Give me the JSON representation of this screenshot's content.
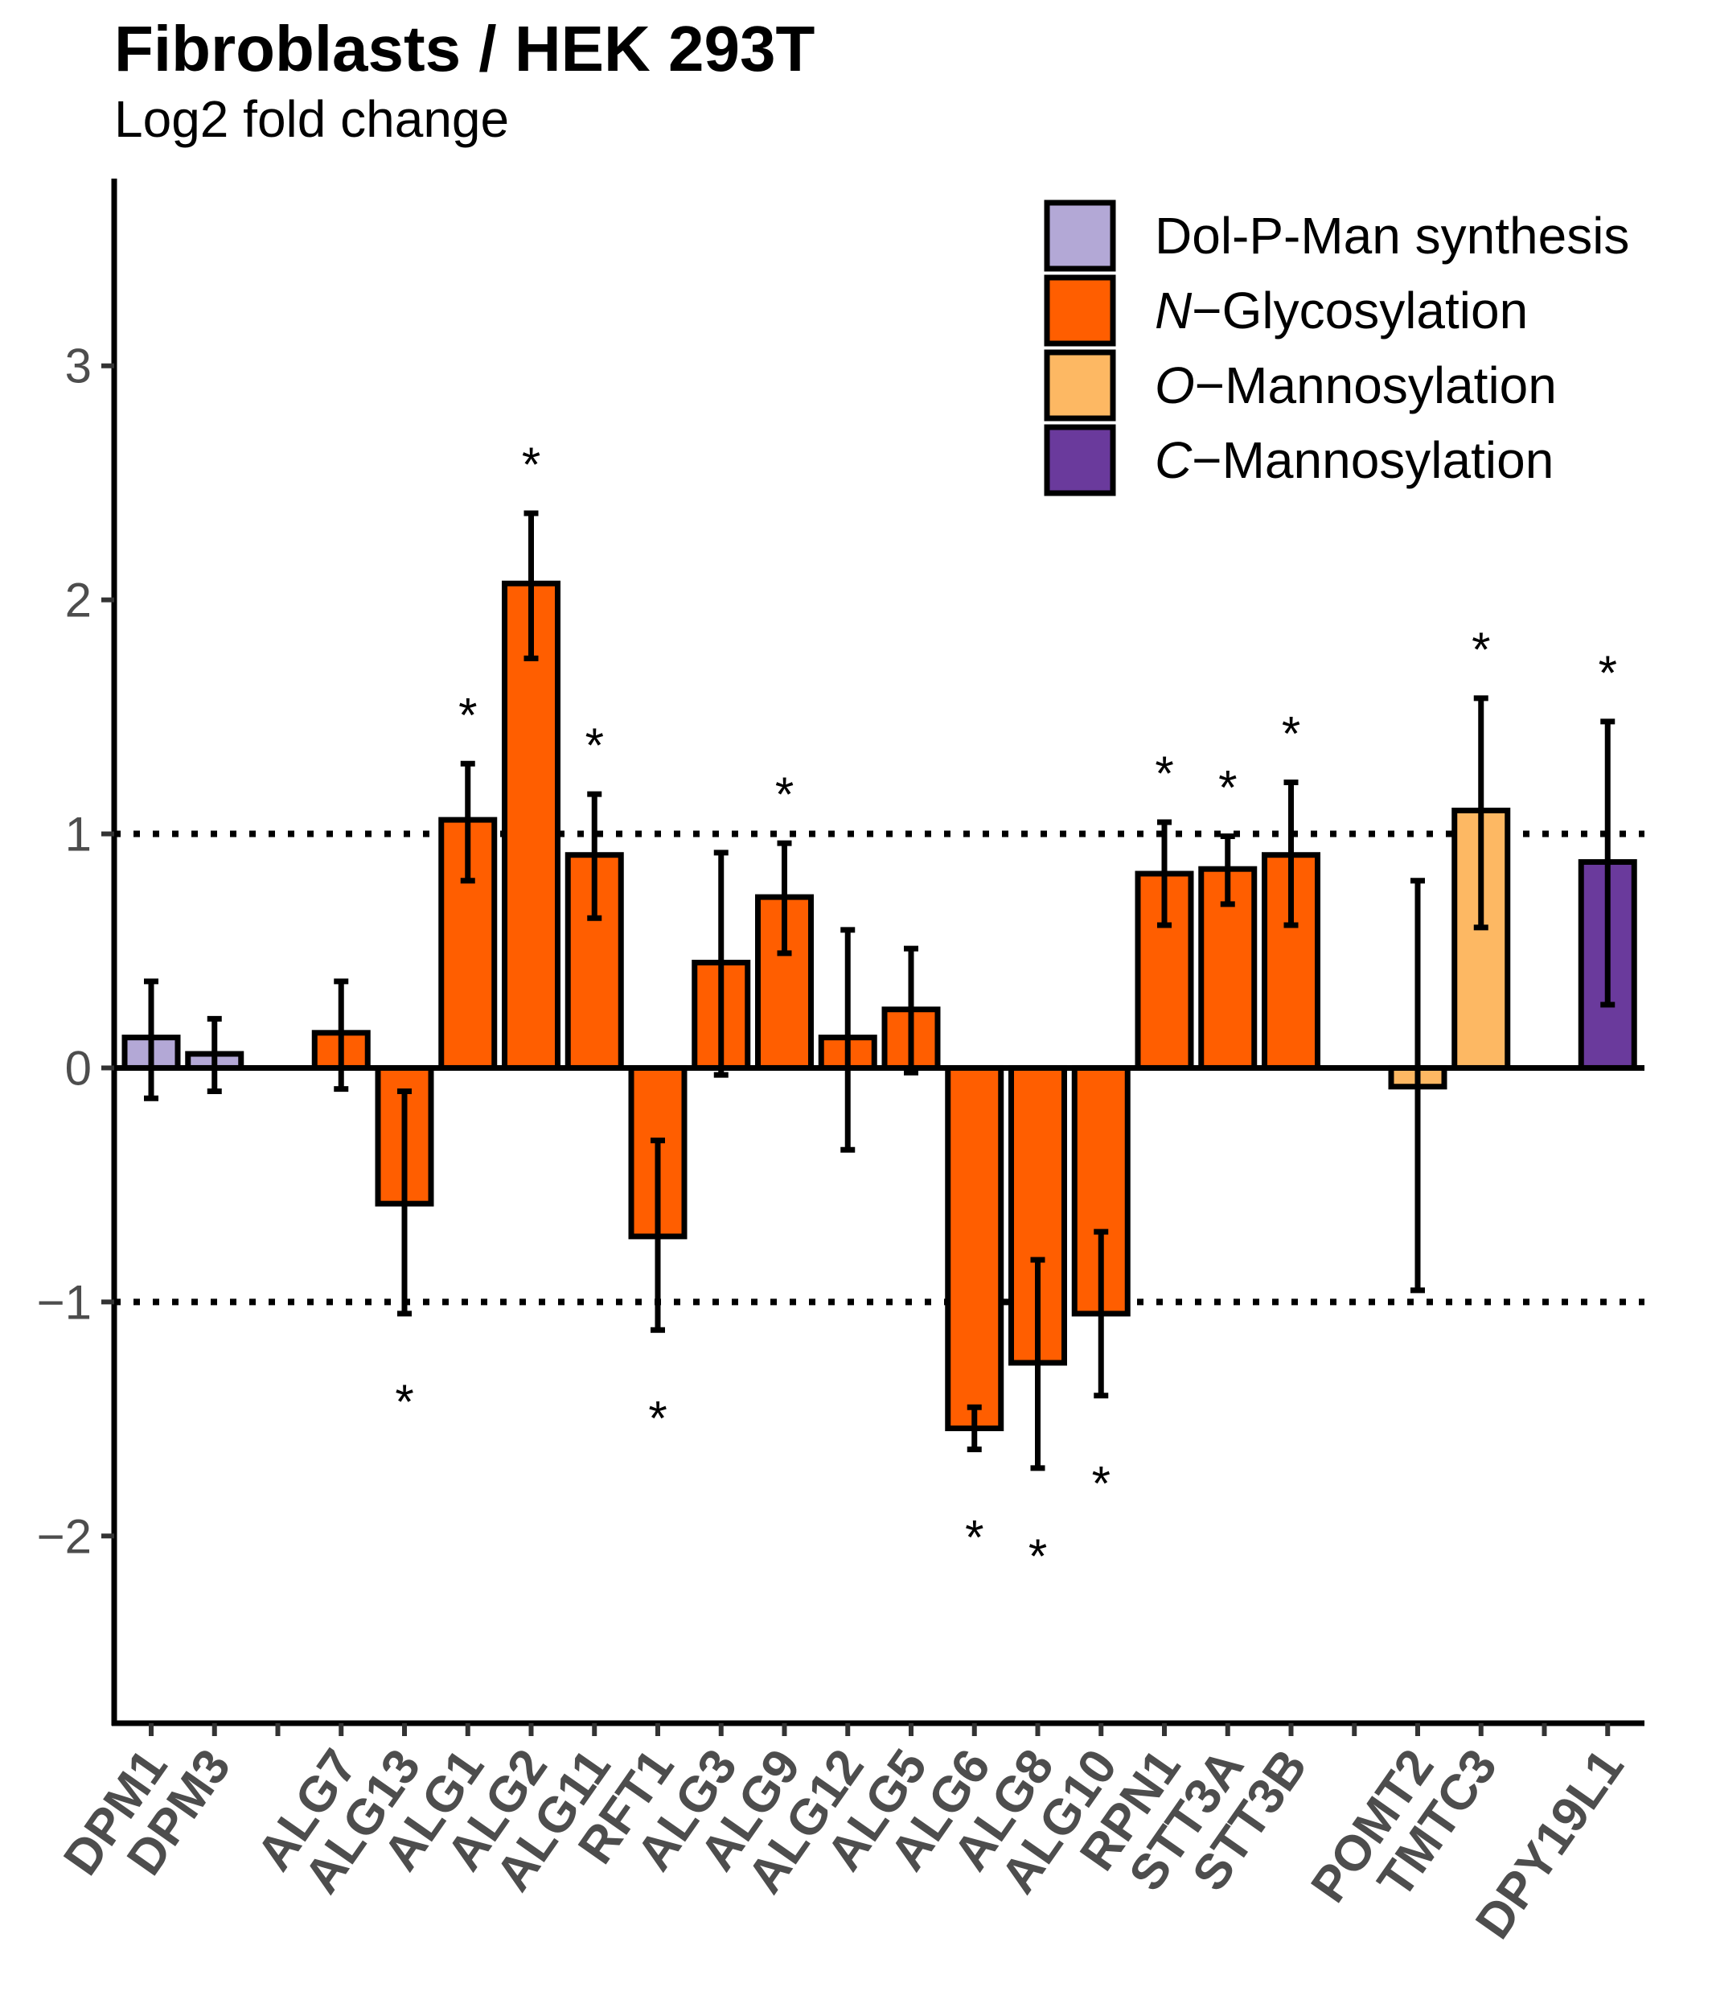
{
  "chart_data": {
    "type": "bar",
    "title": "Fibroblasts / HEK 293T",
    "subtitle": "Log2 fold change",
    "xlabel": "",
    "ylabel": "",
    "ylim": [
      -2.8,
      3.8
    ],
    "yticks": [
      -2,
      -1,
      0,
      1,
      2,
      3
    ],
    "ytick_labels": [
      "−2",
      "−1",
      "0",
      "1",
      "2",
      "3"
    ],
    "reference_lines": [
      1,
      -1
    ],
    "reference_line_style": "dotted",
    "grid": false,
    "legend_position": "top-right",
    "categories": [
      "DPM1",
      "DPM3",
      "",
      "ALG7",
      "ALG13",
      "ALG1",
      "ALG2",
      "ALG11",
      "RFT1",
      "ALG3",
      "ALG9",
      "ALG12",
      "ALG5",
      "ALG6",
      "ALG8",
      "ALG10",
      "RPN1",
      "STT3A",
      "STT3B",
      "",
      "POMT2",
      "TMTC3",
      "",
      "DPY19L1"
    ],
    "bars": [
      {
        "label": "DPM1",
        "value": 0.13,
        "err_low": -0.13,
        "err_high": 0.37,
        "group": "Dol-P-Man synthesis",
        "significant": false
      },
      {
        "label": "DPM3",
        "value": 0.06,
        "err_low": -0.1,
        "err_high": 0.21,
        "group": "Dol-P-Man synthesis",
        "significant": false
      },
      {
        "label": "ALG7",
        "value": 0.15,
        "err_low": -0.09,
        "err_high": 0.37,
        "group": "N-Glycosylation",
        "significant": false
      },
      {
        "label": "ALG13",
        "value": -0.58,
        "err_low": -1.05,
        "err_high": -0.1,
        "group": "N-Glycosylation",
        "significant": true
      },
      {
        "label": "ALG1",
        "value": 1.06,
        "err_low": 0.8,
        "err_high": 1.3,
        "group": "N-Glycosylation",
        "significant": true
      },
      {
        "label": "ALG2",
        "value": 2.07,
        "err_low": 1.75,
        "err_high": 2.37,
        "group": "N-Glycosylation",
        "significant": true
      },
      {
        "label": "ALG11",
        "value": 0.91,
        "err_low": 0.64,
        "err_high": 1.17,
        "group": "N-Glycosylation",
        "significant": true
      },
      {
        "label": "RFT1",
        "value": -0.72,
        "err_low": -1.12,
        "err_high": -0.31,
        "group": "N-Glycosylation",
        "significant": true
      },
      {
        "label": "ALG3",
        "value": 0.45,
        "err_low": -0.03,
        "err_high": 0.92,
        "group": "N-Glycosylation",
        "significant": false
      },
      {
        "label": "ALG9",
        "value": 0.73,
        "err_low": 0.49,
        "err_high": 0.96,
        "group": "N-Glycosylation",
        "significant": true
      },
      {
        "label": "ALG12",
        "value": 0.13,
        "err_low": -0.35,
        "err_high": 0.59,
        "group": "N-Glycosylation",
        "significant": false
      },
      {
        "label": "ALG5",
        "value": 0.25,
        "err_low": -0.02,
        "err_high": 0.51,
        "group": "N-Glycosylation",
        "significant": false
      },
      {
        "label": "ALG6",
        "value": -1.54,
        "err_low": -1.63,
        "err_high": -1.45,
        "group": "N-Glycosylation",
        "significant": true
      },
      {
        "label": "ALG8",
        "value": -1.26,
        "err_low": -1.71,
        "err_high": -0.82,
        "group": "N-Glycosylation",
        "significant": true
      },
      {
        "label": "ALG10",
        "value": -1.05,
        "err_low": -1.4,
        "err_high": -0.7,
        "group": "N-Glycosylation",
        "significant": true
      },
      {
        "label": "RPN1",
        "value": 0.83,
        "err_low": 0.61,
        "err_high": 1.05,
        "group": "N-Glycosylation",
        "significant": true
      },
      {
        "label": "STT3A",
        "value": 0.85,
        "err_low": 0.7,
        "err_high": 0.99,
        "group": "N-Glycosylation",
        "significant": true
      },
      {
        "label": "STT3B",
        "value": 0.91,
        "err_low": 0.61,
        "err_high": 1.22,
        "group": "N-Glycosylation",
        "significant": true
      },
      {
        "label": "POMT2",
        "value": -0.08,
        "err_low": -0.95,
        "err_high": 0.8,
        "group": "O-Mannosylation",
        "significant": false
      },
      {
        "label": "TMTC3",
        "value": 1.1,
        "err_low": 0.6,
        "err_high": 1.58,
        "group": "O-Mannosylation",
        "significant": true
      },
      {
        "label": "DPY19L1",
        "value": 0.88,
        "err_low": 0.27,
        "err_high": 1.48,
        "group": "C-Mannosylation",
        "significant": true
      }
    ],
    "significance_marker": "*",
    "legend": [
      {
        "key": "dolp",
        "prefix": "",
        "italic": "",
        "suffix": "Dol-P-Man synthesis",
        "color": "#b3a8d6"
      },
      {
        "key": "n",
        "prefix": "",
        "italic": "N",
        "suffix": "−Glycosylation",
        "color": "#ff5e00"
      },
      {
        "key": "o",
        "prefix": "",
        "italic": "O",
        "suffix": "−Mannosylation",
        "color": "#fdb863"
      },
      {
        "key": "c",
        "prefix": "",
        "italic": "C",
        "suffix": "−Mannosylation",
        "color": "#6a3a9c"
      }
    ],
    "colors": {
      "Dol-P-Man synthesis": "#b3a8d6",
      "N-Glycosylation": "#ff5e00",
      "O-Mannosylation": "#fdb863",
      "C-Mannosylation": "#6a3a9c"
    }
  }
}
